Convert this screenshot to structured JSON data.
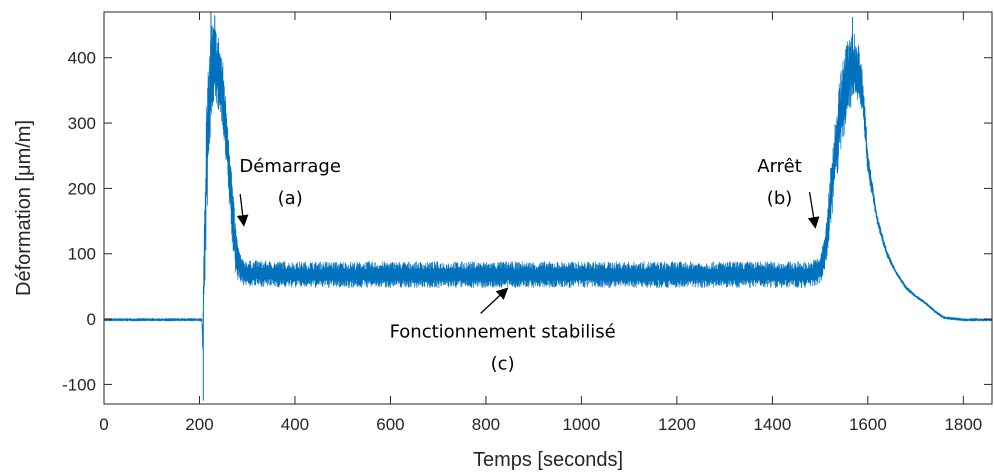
{
  "chart_data": {
    "type": "line",
    "title": "",
    "xlabel": "Temps [seconds]",
    "ylabel": "Déformation [μm/m]",
    "xlim": [
      0,
      1860
    ],
    "ylim": [
      -130,
      470
    ],
    "xticks": [
      0,
      200,
      400,
      600,
      800,
      1000,
      1200,
      1400,
      1600,
      1800
    ],
    "xtick_labels": [
      "0",
      "200",
      "400",
      "600",
      "800",
      "1000",
      "1200",
      "1400",
      "1600",
      "1800"
    ],
    "yticks": [
      -100,
      0,
      100,
      200,
      300,
      400
    ],
    "ytick_labels": [
      "-100",
      "0",
      "100",
      "200",
      "300",
      "400"
    ],
    "grid": false,
    "legend": "none",
    "color": "#0072BD",
    "series": [
      {
        "x": [
          0,
          205,
          207,
          209,
          212,
          215,
          220,
          225,
          230,
          235,
          240,
          245,
          250,
          255,
          260,
          265,
          270,
          275,
          280,
          285,
          290,
          300,
          400,
          600,
          800,
          1000,
          1200,
          1400,
          1480,
          1500,
          1510,
          1520,
          1530,
          1540,
          1550,
          1560,
          1570,
          1580,
          1590,
          1600,
          1620,
          1640,
          1660,
          1680,
          1700,
          1720,
          1740,
          1760,
          1800,
          1860
        ],
        "values": [
          -1,
          -1,
          -40,
          60,
          150,
          240,
          320,
          380,
          395,
          385,
          375,
          360,
          330,
          290,
          250,
          200,
          150,
          110,
          90,
          80,
          72,
          70,
          68,
          68,
          68,
          68,
          68,
          68,
          68,
          75,
          100,
          170,
          240,
          300,
          345,
          375,
          385,
          380,
          340,
          240,
          150,
          100,
          70,
          48,
          35,
          25,
          12,
          2,
          -1,
          -1
        ],
        "amplitude": [
          2,
          2,
          30,
          90,
          100,
          100,
          85,
          75,
          60,
          60,
          60,
          55,
          60,
          55,
          55,
          55,
          50,
          40,
          30,
          22,
          20,
          20,
          20,
          20,
          20,
          20,
          20,
          20,
          20,
          22,
          30,
          45,
          55,
          65,
          65,
          60,
          55,
          45,
          35,
          20,
          8,
          5,
          3,
          3,
          2,
          2,
          2,
          2,
          2,
          2
        ]
      }
    ],
    "annotations": [
      {
        "label": "Démarrage",
        "sublabel": "(a)",
        "text_x": 390,
        "text_y": 225,
        "point_x": 293,
        "point_y": 143
      },
      {
        "label": "Arrêt",
        "sublabel": "(b)",
        "text_x": 1415,
        "text_y": 225,
        "point_x": 1490,
        "point_y": 140
      },
      {
        "label": "Fonctionnement stabilisé",
        "sublabel": "(c)",
        "text_x": 835,
        "text_y": -28,
        "point_x": 845,
        "point_y": 47
      }
    ]
  }
}
